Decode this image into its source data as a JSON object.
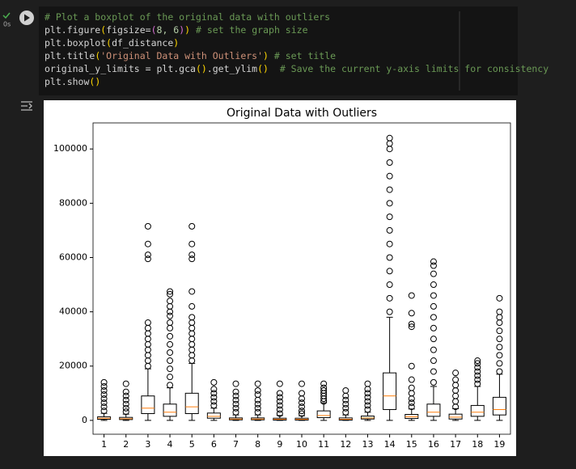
{
  "status": {
    "time": "0s"
  },
  "code": {
    "lines": [
      [
        {
          "text": "# Plot a boxplot of the original data with outliers",
          "color": "#6a9955"
        }
      ],
      [
        {
          "text": "plt.figure",
          "color": "#d4d4d4"
        },
        {
          "text": "(",
          "color": "#ffd700"
        },
        {
          "text": "figsize=",
          "color": "#d4d4d4"
        },
        {
          "text": "(",
          "color": "#da70d6"
        },
        {
          "text": "8, 6",
          "color": "#b5cea8"
        },
        {
          "text": ")",
          "color": "#da70d6"
        },
        {
          "text": ")",
          "color": "#ffd700"
        },
        {
          "text": " # set the graph size",
          "color": "#6a9955"
        }
      ],
      [
        {
          "text": "plt.boxplot",
          "color": "#d4d4d4"
        },
        {
          "text": "(",
          "color": "#ffd700"
        },
        {
          "text": "df_distance",
          "color": "#d4d4d4"
        },
        {
          "text": ")",
          "color": "#ffd700"
        }
      ],
      [
        {
          "text": "plt.title",
          "color": "#d4d4d4"
        },
        {
          "text": "(",
          "color": "#ffd700"
        },
        {
          "text": "'Original Data with Outliers'",
          "color": "#ce9178"
        },
        {
          "text": ")",
          "color": "#ffd700"
        },
        {
          "text": " # set title",
          "color": "#6a9955"
        }
      ],
      [
        {
          "text": "original_y_limits = plt.gca",
          "color": "#d4d4d4"
        },
        {
          "text": "()",
          "color": "#ffd700"
        },
        {
          "text": ".get_ylim",
          "color": "#d4d4d4"
        },
        {
          "text": "()",
          "color": "#ffd700"
        },
        {
          "text": "  # Save the current y-axis limits for consistency",
          "color": "#6a9955"
        }
      ],
      [
        {
          "text": "plt.show",
          "color": "#d4d4d4"
        },
        {
          "text": "()",
          "color": "#ffd700"
        }
      ]
    ]
  },
  "chart_data": {
    "type": "boxplot",
    "title": "Original Data with Outliers",
    "categories": [
      "1",
      "2",
      "3",
      "4",
      "5",
      "6",
      "7",
      "8",
      "9",
      "10",
      "11",
      "12",
      "13",
      "14",
      "15",
      "16",
      "17",
      "18",
      "19"
    ],
    "box_color": "#000000",
    "median_color": "#ff7f0e",
    "ylim": [
      -5100,
      109600
    ],
    "yticks": [
      0,
      20000,
      40000,
      60000,
      80000,
      100000
    ],
    "boxes": [
      {
        "low": 0,
        "q1": 400,
        "median": 800,
        "q3": 1300,
        "high": 2600,
        "outliers": [
          3500,
          5000,
          6500,
          8000,
          9500,
          11000,
          12500,
          14000
        ]
      },
      {
        "low": 0,
        "q1": 300,
        "median": 600,
        "q3": 1100,
        "high": 2300,
        "outliers": [
          3200,
          4500,
          6000,
          7500,
          9000,
          10500,
          13500
        ]
      },
      {
        "low": 0,
        "q1": 2500,
        "median": 4500,
        "q3": 9000,
        "high": 19000,
        "outliers": [
          20000,
          22000,
          24000,
          26000,
          28000,
          30000,
          32000,
          34000,
          36000,
          59500,
          61000,
          65000,
          71500
        ]
      },
      {
        "low": 0,
        "q1": 1500,
        "median": 3000,
        "q3": 6000,
        "high": 12000,
        "outliers": [
          13000,
          16000,
          19000,
          22000,
          25000,
          28000,
          31000,
          34000,
          36000,
          38500,
          40000,
          42000,
          44000,
          46500,
          47500
        ]
      },
      {
        "low": 0,
        "q1": 2500,
        "median": 5000,
        "q3": 10000,
        "high": 21000,
        "outliers": [
          22000,
          24000,
          26000,
          28000,
          30000,
          32000,
          34000,
          36000,
          38000,
          42000,
          47500,
          59500,
          61000,
          65000,
          71500
        ]
      },
      {
        "low": 0,
        "q1": 800,
        "median": 1500,
        "q3": 2700,
        "high": 4500,
        "outliers": [
          5500,
          7000,
          8500,
          10000,
          11500,
          14000
        ]
      },
      {
        "low": 0,
        "q1": 200,
        "median": 500,
        "q3": 900,
        "high": 2000,
        "outliers": [
          3000,
          4500,
          6000,
          7500,
          9000,
          10500,
          13500
        ]
      },
      {
        "low": 0,
        "q1": 200,
        "median": 500,
        "q3": 900,
        "high": 2000,
        "outliers": [
          3000,
          4500,
          6000,
          7500,
          9500,
          11000,
          13500
        ]
      },
      {
        "low": 0,
        "q1": 100,
        "median": 400,
        "q3": 800,
        "high": 1800,
        "outliers": [
          2500,
          4000,
          5500,
          7000,
          8500,
          10000,
          13500
        ]
      },
      {
        "low": 0,
        "q1": 100,
        "median": 400,
        "q3": 800,
        "high": 1700,
        "outliers": [
          2500,
          3500,
          5000,
          6500,
          8000,
          10000,
          13500
        ]
      },
      {
        "low": 0,
        "q1": 1000,
        "median": 1800,
        "q3": 3500,
        "high": 6500,
        "outliers": [
          7000,
          8000,
          9000,
          10000,
          11000,
          12000,
          13500
        ]
      },
      {
        "low": 0,
        "q1": 100,
        "median": 400,
        "q3": 900,
        "high": 2000,
        "outliers": [
          3000,
          4500,
          6000,
          7500,
          9000,
          11000
        ]
      },
      {
        "low": 0,
        "q1": 500,
        "median": 900,
        "q3": 1600,
        "high": 3000,
        "outliers": [
          4000,
          5500,
          7000,
          8500,
          10000,
          11500,
          13500
        ]
      },
      {
        "low": 0,
        "q1": 4000,
        "median": 9000,
        "q3": 17500,
        "high": 38000,
        "outliers": [
          40000,
          45000,
          50000,
          55000,
          60000,
          65000,
          70000,
          75000,
          80000,
          85000,
          90000,
          95000,
          100000,
          102000,
          104000
        ]
      },
      {
        "low": 0,
        "q1": 700,
        "median": 1300,
        "q3": 2200,
        "high": 4200,
        "outliers": [
          5000,
          6500,
          8000,
          10000,
          12000,
          15000,
          20000,
          34500,
          35500,
          39500,
          46000
        ]
      },
      {
        "low": 0,
        "q1": 1500,
        "median": 3000,
        "q3": 6000,
        "high": 12500,
        "outliers": [
          14000,
          18000,
          22000,
          26000,
          30000,
          34000,
          38000,
          42000,
          46000,
          50000,
          54000,
          57000,
          58500
        ]
      },
      {
        "low": 0,
        "q1": 500,
        "median": 1200,
        "q3": 2300,
        "high": 4300,
        "outliers": [
          5000,
          7000,
          9000,
          11000,
          13000,
          15000,
          17500
        ]
      },
      {
        "low": 0,
        "q1": 1500,
        "median": 3000,
        "q3": 5500,
        "high": 12500,
        "outliers": [
          13500,
          15000,
          16500,
          18000,
          19500,
          21000,
          22000
        ]
      },
      {
        "low": 0,
        "q1": 2000,
        "median": 4000,
        "q3": 8500,
        "high": 17000,
        "outliers": [
          18000,
          21000,
          24000,
          27000,
          30000,
          33000,
          36000,
          38000,
          40000,
          45000
        ]
      }
    ]
  }
}
